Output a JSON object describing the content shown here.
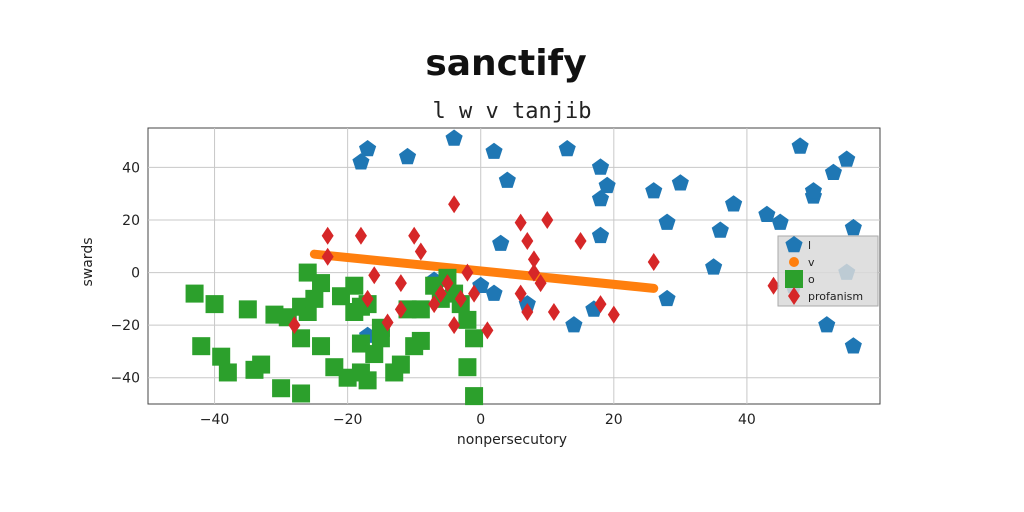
{
  "chart_data": {
    "type": "scatter",
    "title": "sanctify",
    "subtitle": "l w v tanjib",
    "xlabel": "nonpersecutory",
    "ylabel": "swards",
    "xlim": [
      -50,
      60
    ],
    "ylim": [
      -50,
      55
    ],
    "xticks": [
      -40,
      -20,
      0,
      20,
      40
    ],
    "yticks": [
      -40,
      -20,
      0,
      20,
      40
    ],
    "grid": true,
    "legend_position": "right",
    "series": [
      {
        "name": "l",
        "marker": "pentagon",
        "color": "#1f77b4",
        "points": [
          [
            -18,
            42
          ],
          [
            -17,
            47
          ],
          [
            -11,
            44
          ],
          [
            -4,
            51
          ],
          [
            2,
            46
          ],
          [
            4,
            35
          ],
          [
            13,
            47
          ],
          [
            18,
            40
          ],
          [
            19,
            33
          ],
          [
            18,
            28
          ],
          [
            26,
            31
          ],
          [
            30,
            34
          ],
          [
            28,
            19
          ],
          [
            18,
            14
          ],
          [
            3,
            11
          ],
          [
            2,
            -8
          ],
          [
            7,
            -12
          ],
          [
            17,
            -14
          ],
          [
            14,
            -20
          ],
          [
            36,
            16
          ],
          [
            38,
            26
          ],
          [
            43,
            22
          ],
          [
            45,
            19
          ],
          [
            48,
            48
          ],
          [
            50,
            29
          ],
          [
            50,
            31
          ],
          [
            53,
            38
          ],
          [
            55,
            43
          ],
          [
            56,
            17
          ],
          [
            55,
            0
          ],
          [
            52,
            -20
          ],
          [
            56,
            -28
          ],
          [
            47,
            -5
          ],
          [
            35,
            2
          ],
          [
            28,
            -10
          ],
          [
            -17,
            -24
          ],
          [
            -7,
            -3
          ],
          [
            0,
            -5
          ]
        ]
      },
      {
        "name": "v",
        "marker": "circle",
        "color": "#ff7f0e",
        "line": [
          [
            -25,
            7
          ],
          [
            26,
            -6
          ]
        ]
      },
      {
        "name": "o",
        "marker": "square",
        "color": "#2ca02c",
        "points": [
          [
            -43,
            -8
          ],
          [
            -40,
            -12
          ],
          [
            -42,
            -28
          ],
          [
            -39,
            -32
          ],
          [
            -38,
            -38
          ],
          [
            -34,
            -37
          ],
          [
            -33,
            -35
          ],
          [
            -35,
            -14
          ],
          [
            -31,
            -16
          ],
          [
            -29,
            -17
          ],
          [
            -27,
            -13
          ],
          [
            -26,
            -15
          ],
          [
            -25,
            -10
          ],
          [
            -24,
            -4
          ],
          [
            -26,
            0
          ],
          [
            -27,
            -25
          ],
          [
            -24,
            -28
          ],
          [
            -22,
            -36
          ],
          [
            -20,
            -40
          ],
          [
            -18,
            -38
          ],
          [
            -17,
            -41
          ],
          [
            -30,
            -44
          ],
          [
            -27,
            -46
          ],
          [
            -19,
            -15
          ],
          [
            -18,
            -27
          ],
          [
            -16,
            -31
          ],
          [
            -15,
            -25
          ],
          [
            -13,
            -38
          ],
          [
            -12,
            -35
          ],
          [
            -10,
            -28
          ],
          [
            -9,
            -26
          ],
          [
            -11,
            -14
          ],
          [
            -9,
            -14
          ],
          [
            -7,
            -5
          ],
          [
            -6,
            -10
          ],
          [
            -4,
            -8
          ],
          [
            -5,
            -2
          ],
          [
            -3,
            -12
          ],
          [
            -2,
            -18
          ],
          [
            -1,
            -25
          ],
          [
            -2,
            -36
          ],
          [
            -1,
            -47
          ],
          [
            -18,
            -13
          ],
          [
            -19,
            -5
          ],
          [
            -15,
            -21
          ],
          [
            -21,
            -9
          ],
          [
            -17,
            -12
          ]
        ]
      },
      {
        "name": "profanism",
        "marker": "diamond",
        "color": "#d62728",
        "points": [
          [
            -23,
            14
          ],
          [
            -23,
            6
          ],
          [
            -18,
            14
          ],
          [
            -10,
            14
          ],
          [
            -9,
            8
          ],
          [
            -4,
            26
          ],
          [
            -2,
            0
          ],
          [
            -1,
            -8
          ],
          [
            1,
            -22
          ],
          [
            -7,
            -12
          ],
          [
            -5,
            -4
          ],
          [
            -14,
            -19
          ],
          [
            -16,
            -1
          ],
          [
            -17,
            -10
          ],
          [
            -12,
            -4
          ],
          [
            -12,
            -14
          ],
          [
            -28,
            -20
          ],
          [
            6,
            19
          ],
          [
            7,
            12
          ],
          [
            10,
            20
          ],
          [
            8,
            5
          ],
          [
            6,
            -8
          ],
          [
            7,
            -15
          ],
          [
            8,
            0
          ],
          [
            9,
            -4
          ],
          [
            11,
            -15
          ],
          [
            15,
            12
          ],
          [
            18,
            -12
          ],
          [
            20,
            -16
          ],
          [
            26,
            4
          ],
          [
            44,
            -5
          ],
          [
            -6,
            -8
          ],
          [
            -3,
            -10
          ],
          [
            -4,
            -20
          ]
        ]
      }
    ]
  }
}
